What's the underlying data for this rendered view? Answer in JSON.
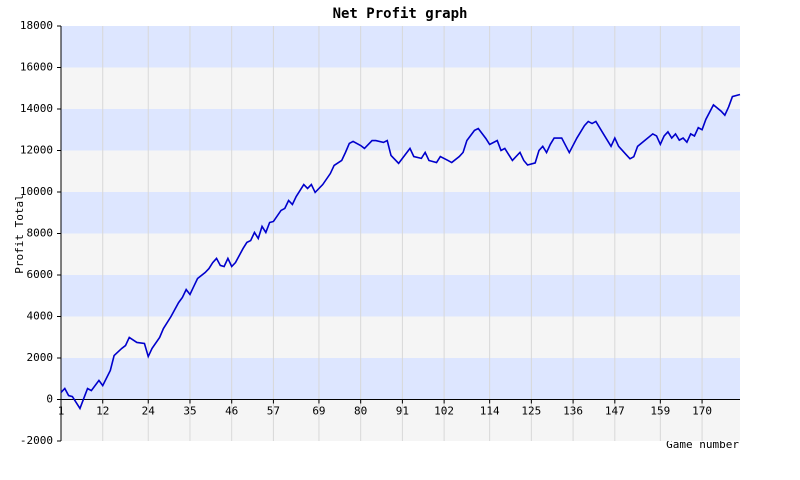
{
  "chart_data": {
    "type": "line",
    "title": "Net Profit graph",
    "x_label": "Game number",
    "y_label": "Profit Total",
    "series": [
      {
        "name": "Net Profit",
        "color": "#0000cc",
        "x": [
          1,
          2,
          3,
          4,
          6,
          7,
          8,
          9,
          11,
          12,
          14,
          15,
          17,
          18,
          19,
          21,
          23,
          24,
          25,
          27,
          28,
          30,
          32,
          33,
          34,
          35,
          36,
          37,
          39,
          40,
          41,
          42,
          43,
          44,
          45,
          46,
          47,
          49,
          50,
          51,
          52,
          53,
          54,
          55,
          56,
          57,
          59,
          60,
          61,
          62,
          63,
          64,
          65,
          66,
          67,
          68,
          70,
          72,
          73,
          75,
          76,
          77,
          78,
          80,
          81,
          83,
          84,
          86,
          87,
          88,
          90,
          92,
          93,
          94,
          96,
          97,
          98,
          100,
          101,
          103,
          104,
          106,
          107,
          108,
          110,
          111,
          113,
          114,
          116,
          117,
          118,
          120,
          122,
          123,
          124,
          126,
          127,
          128,
          129,
          130,
          131,
          133,
          135,
          137,
          139,
          140,
          141,
          142,
          144,
          146,
          147,
          148,
          150,
          151,
          152,
          153,
          155,
          157,
          158,
          159,
          160,
          161,
          162,
          163,
          164,
          165,
          166,
          167,
          168,
          169,
          170,
          171,
          173,
          175,
          176,
          177,
          178,
          180
        ],
        "values": [
          340,
          530,
          190,
          140,
          -430,
          50,
          530,
          430,
          920,
          670,
          1400,
          2120,
          2460,
          2600,
          2990,
          2750,
          2700,
          2070,
          2460,
          2990,
          3420,
          4000,
          4670,
          4920,
          5300,
          5060,
          5450,
          5830,
          6120,
          6310,
          6600,
          6800,
          6460,
          6410,
          6800,
          6410,
          6600,
          7280,
          7570,
          7660,
          8050,
          7760,
          8340,
          8050,
          8530,
          8580,
          9110,
          9210,
          9590,
          9400,
          9780,
          10070,
          10360,
          10170,
          10360,
          9980,
          10360,
          10890,
          11280,
          11520,
          11910,
          12340,
          12440,
          12240,
          12100,
          12480,
          12480,
          12390,
          12480,
          11760,
          11380,
          11860,
          12100,
          11710,
          11620,
          11910,
          11520,
          11420,
          11710,
          11520,
          11420,
          11710,
          11910,
          12480,
          12970,
          13060,
          12580,
          12290,
          12480,
          12000,
          12100,
          11520,
          11910,
          11520,
          11300,
          11400,
          12000,
          12200,
          11900,
          12300,
          12600,
          12600,
          11900,
          12600,
          13200,
          13400,
          13300,
          13400,
          12800,
          12200,
          12600,
          12200,
          11800,
          11600,
          11700,
          12200,
          12500,
          12800,
          12700,
          12300,
          12700,
          12900,
          12600,
          12800,
          12500,
          12600,
          12400,
          12800,
          12700,
          13100,
          13000,
          13500,
          14200,
          13900,
          13700,
          14100,
          14600,
          14700
        ]
      }
    ],
    "xlim": [
      1,
      180
    ],
    "xticks": [
      1,
      12,
      24,
      35,
      46,
      57,
      69,
      80,
      91,
      102,
      114,
      125,
      136,
      147,
      159,
      170
    ],
    "ylim": [
      -2000,
      18000
    ],
    "yticks": [
      -2000,
      0,
      2000,
      4000,
      6000,
      8000,
      10000,
      12000,
      14000,
      16000,
      18000
    ],
    "band_colors": [
      "#f5f5f5",
      "#dde6ff"
    ],
    "grid": true
  }
}
